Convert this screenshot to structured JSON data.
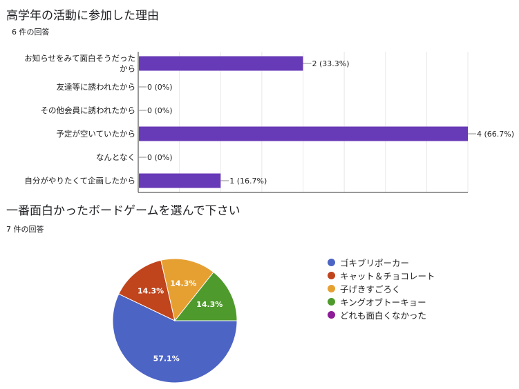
{
  "q1": {
    "title": "高学年の活動に参加した理由",
    "response_count": "6 件の回答"
  },
  "q2": {
    "title": "一番面白かったボードゲームを選んで下さい",
    "response_count": "7 件の回答"
  },
  "chart_data": [
    {
      "type": "bar",
      "orientation": "horizontal",
      "categories": [
        [
          "お知らせをみて面白そうだった",
          "から"
        ],
        [
          "友達等に誘われたから"
        ],
        [
          "その他会員に誘われたから"
        ],
        [
          "予定が空いていたから"
        ],
        [
          "なんとなく"
        ],
        [
          "自分がやりたくて企画したから"
        ]
      ],
      "values": [
        2,
        0,
        0,
        4,
        0,
        1
      ],
      "value_labels": [
        "2 (33.3%)",
        "0 (0%)",
        "0 (0%)",
        "4 (66.7%)",
        "0 (0%)",
        "1 (16.7%)"
      ],
      "xlim": [
        0,
        4
      ],
      "grid": true,
      "bar_color": "#673ab7"
    },
    {
      "type": "pie",
      "categories": [
        "ゴキブリポーカー",
        "キャット＆チョコレート",
        "子げきすごろく",
        "キングオブトーキョー",
        "どれも面白くなかった"
      ],
      "values": [
        57.1,
        14.3,
        14.3,
        14.3,
        0
      ],
      "slice_labels": [
        "57.1%",
        "14.3%",
        "14.3%",
        "14.3%",
        ""
      ],
      "colors": [
        "#4c64c4",
        "#c0441c",
        "#e6a032",
        "#4f9a2d",
        "#8e1b97"
      ],
      "legend_position": "right"
    }
  ]
}
